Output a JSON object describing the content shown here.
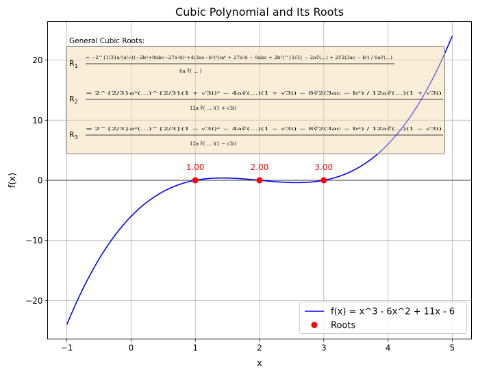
{
  "chart_data": {
    "type": "line",
    "title": "Cubic Polynomial and Its Roots",
    "xlabel": "x",
    "ylabel": "f(x)",
    "xlim": [
      -1.3,
      5.3
    ],
    "ylim": [
      -26.4,
      26.4
    ],
    "x_ticks": [
      -1,
      0,
      1,
      2,
      3,
      4,
      5
    ],
    "y_ticks": [
      -20,
      -10,
      0,
      10,
      20
    ],
    "x_tick_labels": [
      "−1",
      "0",
      "1",
      "2",
      "3",
      "4",
      "5"
    ],
    "y_tick_labels": [
      "−20",
      "−10",
      "0",
      "10",
      "20"
    ],
    "grid": true,
    "legend_position": "lower right",
    "series": [
      {
        "name": "f(x) = x^3 - 6x^2 + 11x - 6",
        "type": "line",
        "color": "#0000ff",
        "x": [
          -1,
          -0.5,
          0,
          0.5,
          1,
          1.5,
          2,
          2.5,
          3,
          3.5,
          4,
          4.5,
          5
        ],
        "y": [
          -24,
          -13.125,
          -6,
          -1.875,
          0,
          0.375,
          0,
          -0.375,
          0,
          1.875,
          6,
          13.125,
          24
        ]
      },
      {
        "name": "Roots",
        "type": "scatter",
        "color": "#ff0000",
        "x": [
          1,
          2,
          3
        ],
        "y": [
          0,
          0,
          0
        ],
        "labels": [
          "1.00",
          "2.00",
          "3.00"
        ]
      }
    ],
    "annotation": {
      "heading": "General Cubic Roots:",
      "roots": [
        {
          "label": "R",
          "sub": "1",
          "formula": "= −2^{1/3}a²(a³√((−2b³+9abc−27a²d)²+4(3ac−b²)³)/a⁶ + 27a²d − 9abc + 2b³)^{1/3} − 2a∛(…) + 2∛2(3ac − b²) / 6a∛(…)"
        },
        {
          "label": "R",
          "sub": "2",
          "formula": "= 2^{2/3}a²(…)^{2/3}(1 + √3i)² − 4a∛(…)(1 + √3i) − 8∛2(3ac − b²) / 12a∛(…)(1 + √3i)"
        },
        {
          "label": "R",
          "sub": "3",
          "formula": "= 2^{2/3}a²(…)^{2/3}(1 − √3i)² − 4a∛(…)(1 − √3i) − 8∛2(3ac − b²) / 12a∛(…)(1 − √3i)"
        }
      ]
    }
  }
}
